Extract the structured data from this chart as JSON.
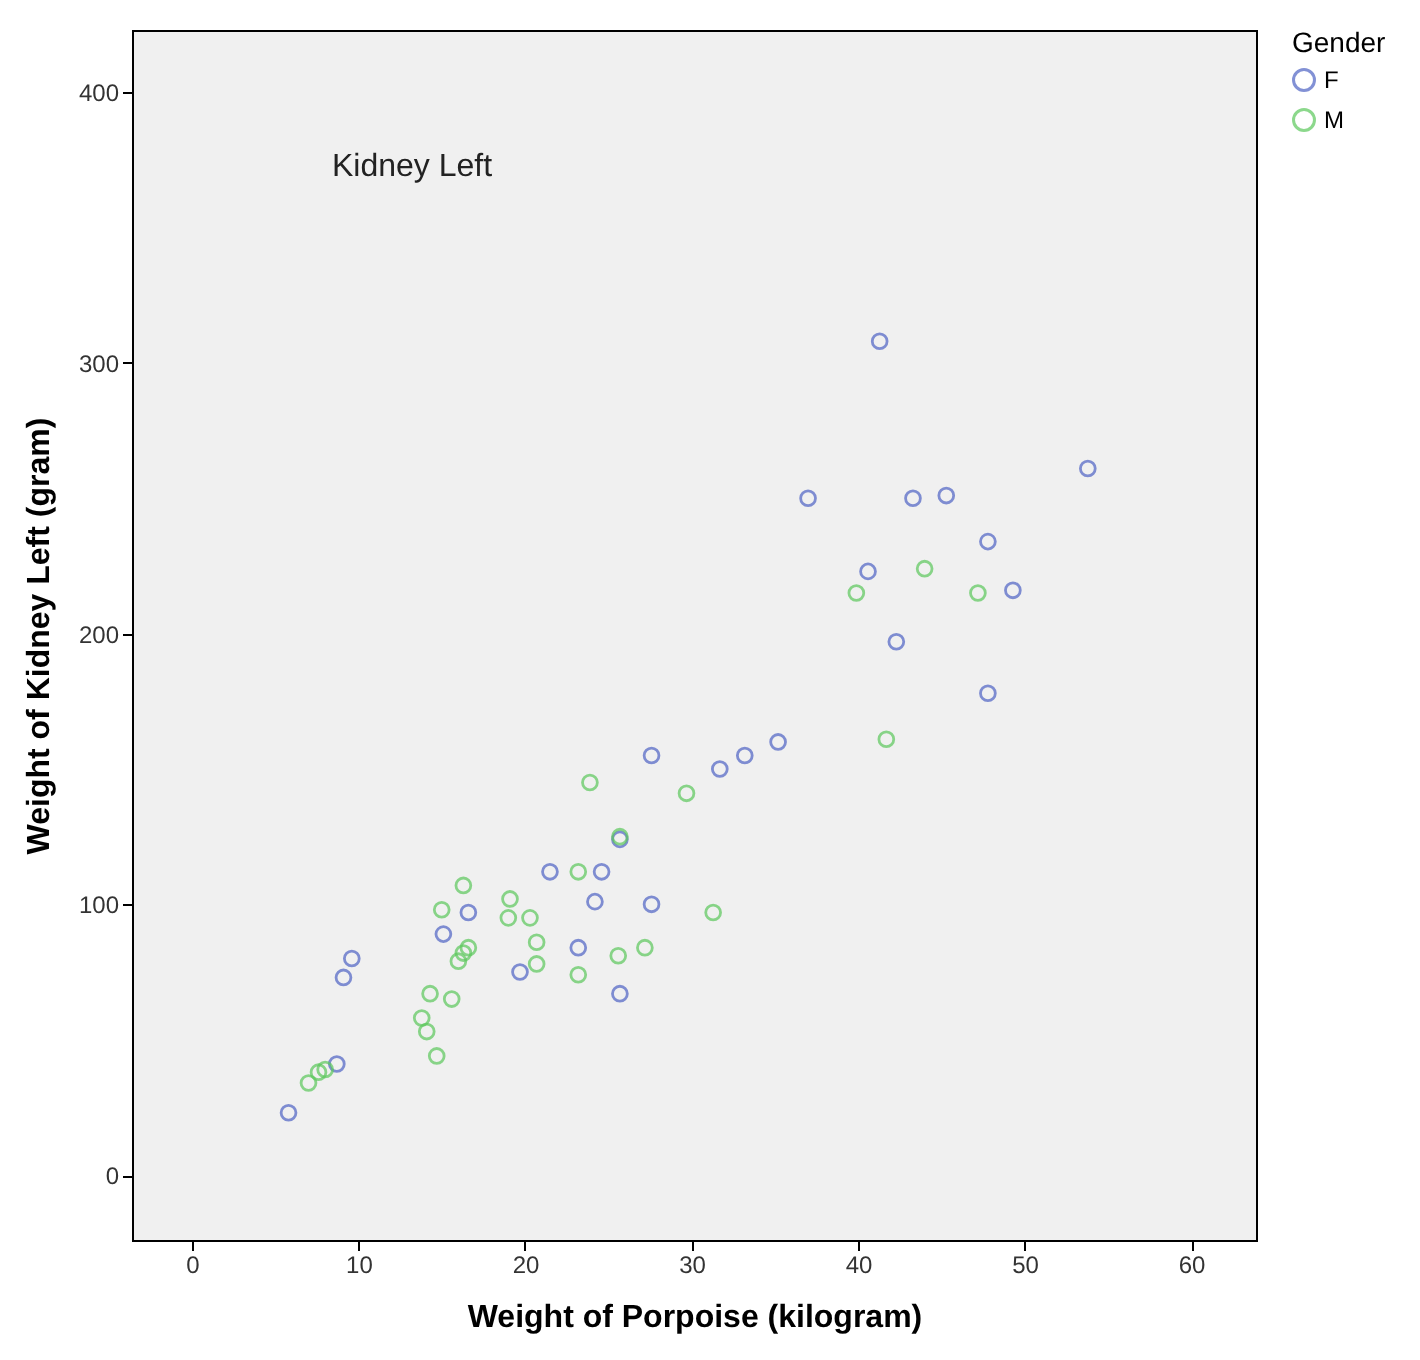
{
  "chart_data": {
    "type": "scatter",
    "xlabel": "Weight of Porpoise (kilogram)",
    "ylabel": "Weight of Kidney Left (gram)",
    "legend_title": "Gender",
    "annotations": [
      "Kidney Left"
    ],
    "xlim": [
      -3.6,
      63.9
    ],
    "ylim": [
      -24,
      423
    ],
    "xticks": [
      0,
      10,
      20,
      30,
      40,
      50,
      60
    ],
    "yticks": [
      0,
      100,
      200,
      300,
      400
    ],
    "grid": false,
    "legend": "top right",
    "marker": "circle",
    "series": [
      {
        "name": "F",
        "color": "#4e63c4",
        "x": [
          5.8,
          8.7,
          9.1,
          9.6,
          15.1,
          16.6,
          19.7,
          21.5,
          23.2,
          24.2,
          24.6,
          25.7,
          25.7,
          27.6,
          27.6,
          31.7,
          33.2,
          35.2,
          37.0,
          40.6,
          41.3,
          42.3,
          43.3,
          45.3,
          47.8,
          47.8,
          49.3,
          53.8
        ],
        "values": [
          23,
          41,
          73,
          80,
          89,
          97,
          75,
          112,
          84,
          101,
          112,
          124,
          67,
          155,
          100,
          150,
          155,
          160,
          250,
          223,
          308,
          197,
          250,
          251,
          234,
          178,
          216,
          261
        ]
      },
      {
        "name": "M",
        "color": "#5cc85c",
        "x": [
          7.0,
          7.6,
          8.0,
          14.7,
          14.1,
          13.8,
          14.3,
          15.6,
          16.0,
          16.3,
          16.6,
          16.3,
          15.0,
          19.1,
          19.0,
          20.3,
          20.7,
          20.7,
          23.2,
          25.6,
          27.2,
          23.2,
          23.9,
          29.7,
          31.3,
          25.7,
          44.0,
          39.9,
          47.2,
          41.7
        ],
        "values": [
          34,
          38,
          39,
          44,
          53,
          58,
          67,
          65,
          79,
          82,
          84,
          107,
          98,
          102,
          95,
          95,
          86,
          78,
          74,
          81,
          84,
          112,
          145,
          141,
          97,
          125,
          224,
          215,
          215,
          161
        ]
      }
    ]
  }
}
